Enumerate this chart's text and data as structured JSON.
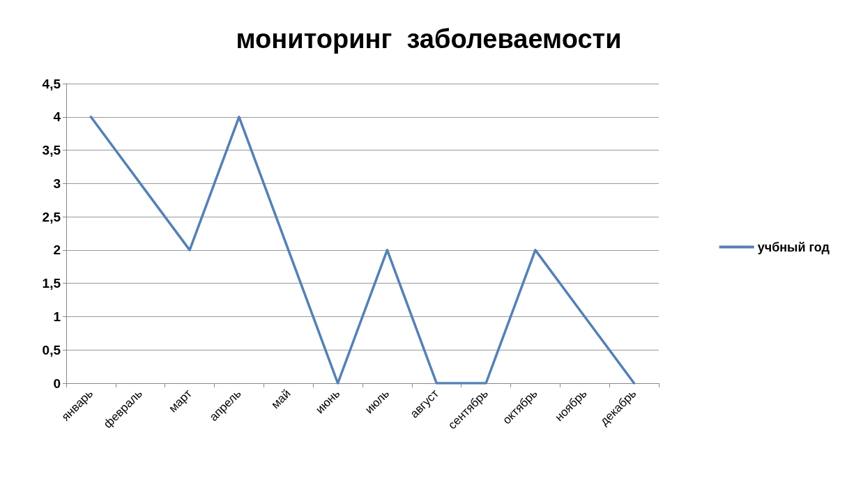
{
  "chart_data": {
    "type": "line",
    "title": "мониторинг  заболеваемости",
    "categories": [
      "январь",
      "февраль",
      "март",
      "апрель",
      "май",
      "июнь",
      "июль",
      "август",
      "сентябрь",
      "октябрь",
      "ноябрь",
      "декабрь"
    ],
    "series": [
      {
        "name": "учбный год",
        "color": "#4f81bd",
        "values": [
          4,
          3,
          2,
          4,
          2,
          0,
          2,
          0,
          0,
          2,
          1,
          0
        ]
      }
    ],
    "ylim": [
      0,
      4.5
    ],
    "yticks": [
      0,
      {
        "value": 0.5,
        "label": "0,5"
      },
      1,
      {
        "value": 1.5,
        "label": "1,5"
      },
      2,
      {
        "value": 2.5,
        "label": "2,5"
      },
      3,
      {
        "value": 3.5,
        "label": "3,5"
      },
      4,
      {
        "value": 4.5,
        "label": "4,5"
      }
    ],
    "grid": "y",
    "legend": "right",
    "marker": "none",
    "line_style": "solid"
  }
}
